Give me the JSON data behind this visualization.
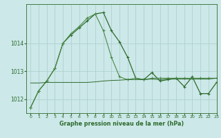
{
  "title": "Graphe pression niveau de la mer (hPa)",
  "bg_color": "#cce8e8",
  "grid_color": "#aacccc",
  "line_color_dark": "#2d6a2d",
  "line_color_mid": "#4a8a4a",
  "xlim": [
    -0.5,
    23
  ],
  "ylim": [
    1011.5,
    1015.4
  ],
  "yticks": [
    1012,
    1013,
    1014
  ],
  "xticks": [
    0,
    1,
    2,
    3,
    4,
    5,
    6,
    7,
    8,
    9,
    10,
    11,
    12,
    13,
    14,
    15,
    16,
    17,
    18,
    19,
    20,
    21,
    22,
    23
  ],
  "series1": [
    1011.7,
    1012.3,
    1012.65,
    1013.1,
    1014.0,
    1014.3,
    1014.55,
    1014.8,
    1015.05,
    1015.1,
    1014.45,
    1014.05,
    1013.5,
    1012.75,
    1012.7,
    1012.95,
    1012.65,
    1012.7,
    1012.75,
    1012.45,
    1012.8,
    1012.2,
    1012.2,
    1012.6
  ],
  "series2": [
    1011.7,
    1012.3,
    1012.65,
    1013.1,
    1014.0,
    1014.35,
    1014.6,
    1014.9,
    1015.05,
    1014.45,
    1013.5,
    1012.8,
    1012.7,
    1012.75,
    1012.7,
    1012.75,
    1012.75,
    1012.75,
    1012.75,
    1012.75,
    1012.75,
    1012.75,
    1012.75,
    1012.75
  ],
  "series3": [
    1012.58,
    1012.58,
    1012.6,
    1012.6,
    1012.6,
    1012.6,
    1012.6,
    1012.6,
    1012.62,
    1012.65,
    1012.67,
    1012.68,
    1012.7,
    1012.7,
    1012.7,
    1012.72,
    1012.7,
    1012.72,
    1012.72,
    1012.72,
    1012.72,
    1012.72,
    1012.72,
    1012.75
  ]
}
